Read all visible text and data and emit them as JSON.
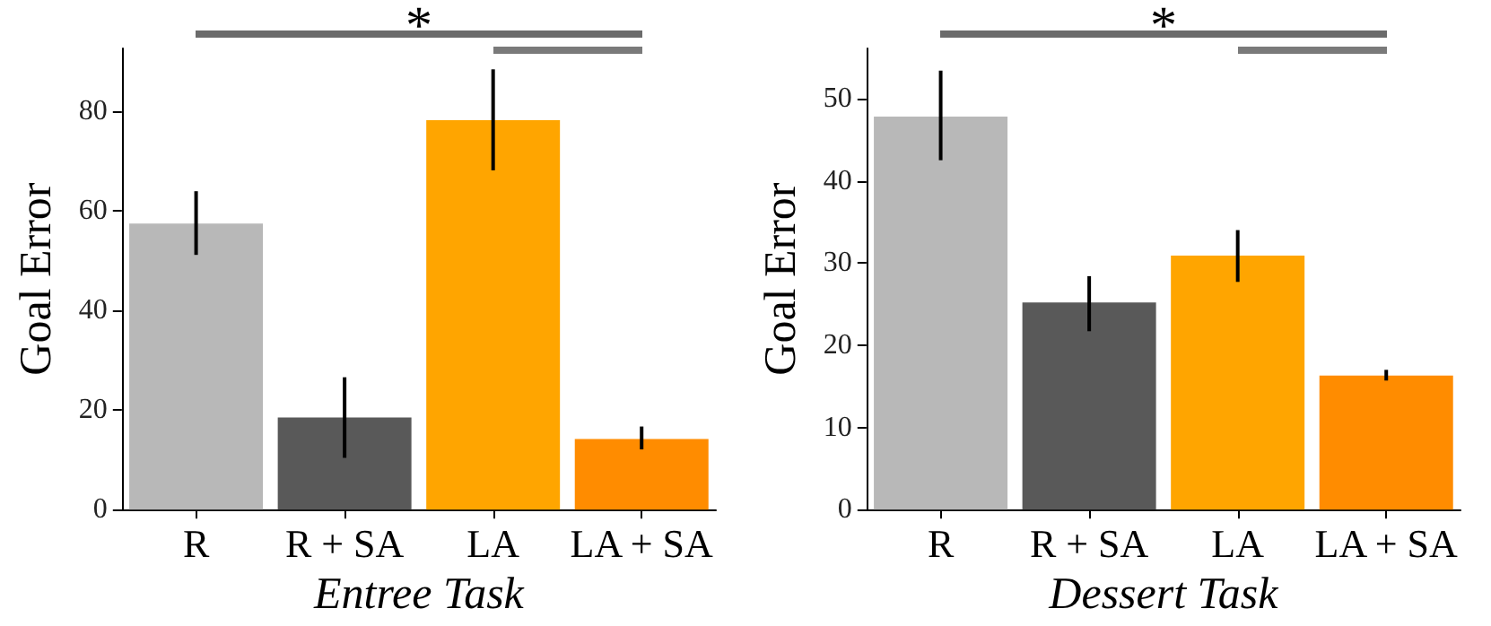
{
  "chart_data": [
    {
      "type": "bar",
      "xlabel": "Entree Task",
      "ylabel": "Goal Error",
      "categories": [
        "R",
        "R + SA",
        "LA",
        "LA + SA"
      ],
      "values": [
        57.5,
        18.5,
        78.3,
        14.2
      ],
      "colors": [
        "#b8b8b8",
        "#595959",
        "#ffa500",
        "#ff8c00"
      ],
      "errors": [
        [
          51.2,
          64.0
        ],
        [
          10.4,
          26.6
        ],
        [
          68.2,
          88.5
        ],
        [
          12.1,
          16.7
        ]
      ],
      "ylim": [
        0,
        92.7
      ],
      "yticks": [
        0,
        20,
        40,
        60,
        80
      ],
      "grid": false,
      "annotations": [
        "*"
      ]
    },
    {
      "type": "bar",
      "xlabel": "Dessert Task",
      "ylabel": "Goal Error",
      "categories": [
        "R",
        "R + SA",
        "LA",
        "LA + SA"
      ],
      "values": [
        47.8,
        25.2,
        30.9,
        16.3
      ],
      "colors": [
        "#b8b8b8",
        "#595959",
        "#ffa500",
        "#ff8c00"
      ],
      "errors": [
        [
          42.5,
          53.4
        ],
        [
          21.7,
          28.4
        ],
        [
          27.7,
          34.0
        ],
        [
          15.7,
          17.0
        ]
      ],
      "ylim": [
        0,
        56.1
      ],
      "yticks": [
        0,
        10,
        20,
        30,
        40,
        50
      ],
      "grid": false,
      "annotations": [
        "*"
      ]
    }
  ]
}
